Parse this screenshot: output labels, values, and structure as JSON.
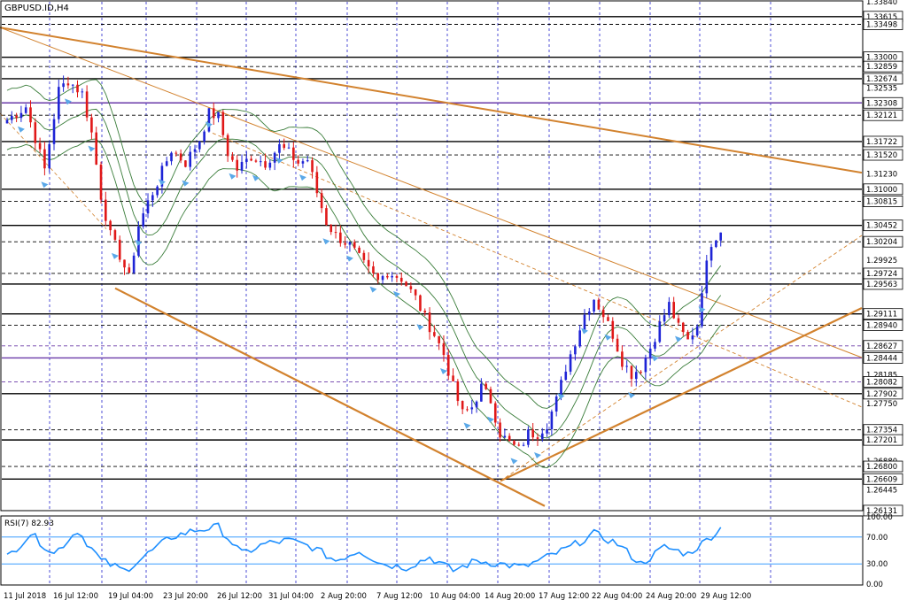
{
  "title": "GBPUSD.ID,H4",
  "colors": {
    "background": "#ffffff",
    "frame": "#000000",
    "grid": "#2222cc",
    "bull_candle": "#1e24d6",
    "bear_candle": "#e01818",
    "trendline": "#d2822e",
    "bollinger": "#3a7d3a",
    "level_line": "#000000",
    "level_line_purple": "#6a3aa8",
    "rsi_line": "#1e8fff",
    "fractal_arrow": "#5aa8e8"
  },
  "chart_data": {
    "type": "candlestick",
    "symbol": "GBPUSD.ID",
    "timeframe": "H4",
    "ylim": [
      1.2613,
      1.3384
    ],
    "price_ticks": [
      "1.33840",
      "1.33615",
      "1.33498",
      "1.33000",
      "1.32859",
      "1.32674",
      "1.32535",
      "1.32308",
      "1.32121",
      "1.31722",
      "1.31520",
      "1.31230",
      "1.31000",
      "1.30815",
      "1.30452",
      "1.30204",
      "1.29925",
      "1.29724",
      "1.29563",
      "1.29111",
      "1.28940",
      "1.28627",
      "1.28444",
      "1.28185",
      "1.28082",
      "1.27902",
      "1.27750",
      "1.27354",
      "1.27201",
      "1.26880",
      "1.26800",
      "1.26609",
      "1.26445",
      "1.26131"
    ],
    "horizontal_levels": [
      {
        "price": 1.33615,
        "style": "solid"
      },
      {
        "price": 1.33498,
        "style": "dashed"
      },
      {
        "price": 1.33,
        "style": "solid"
      },
      {
        "price": 1.32859,
        "style": "dashed"
      },
      {
        "price": 1.32674,
        "style": "solid"
      },
      {
        "price": 1.32308,
        "style": "solid",
        "color": "purple"
      },
      {
        "price": 1.32121,
        "style": "dashed"
      },
      {
        "price": 1.31722,
        "style": "solid"
      },
      {
        "price": 1.3152,
        "style": "dashed"
      },
      {
        "price": 1.31,
        "style": "solid"
      },
      {
        "price": 1.30815,
        "style": "dashed"
      },
      {
        "price": 1.30452,
        "style": "solid"
      },
      {
        "price": 1.30204,
        "style": "dashed"
      },
      {
        "price": 1.29724,
        "style": "dashed"
      },
      {
        "price": 1.29563,
        "style": "solid"
      },
      {
        "price": 1.29111,
        "style": "solid"
      },
      {
        "price": 1.2894,
        "style": "dashed"
      },
      {
        "price": 1.28627,
        "style": "dashed",
        "color": "purple"
      },
      {
        "price": 1.28444,
        "style": "solid",
        "color": "purple"
      },
      {
        "price": 1.28082,
        "style": "dashed",
        "color": "purple"
      },
      {
        "price": 1.27902,
        "style": "solid"
      },
      {
        "price": 1.27354,
        "style": "dashed"
      },
      {
        "price": 1.27201,
        "style": "solid"
      },
      {
        "price": 1.268,
        "style": "dashed"
      },
      {
        "price": 1.26609,
        "style": "solid"
      },
      {
        "price": 1.26131,
        "style": "dashed"
      }
    ],
    "boxed_price_labels": [
      "1.33615",
      "1.33498",
      "1.33000",
      "1.32859",
      "1.32674",
      "1.32308",
      "1.32121",
      "1.31722",
      "1.31520",
      "1.31000",
      "1.30815",
      "1.30452",
      "1.30204",
      "1.29724",
      "1.29563",
      "1.29111",
      "1.28940",
      "1.28627",
      "1.28444",
      "1.28082",
      "1.27902",
      "1.27354",
      "1.27201",
      "1.26800",
      "1.26609",
      "1.26131"
    ],
    "last_price": 1.30452,
    "time_labels": [
      "11 Jul 2018",
      "16 Jul 12:00",
      "19 Jul 04:00",
      "23 Jul 20:00",
      "26 Jul 12:00",
      "31 Jul 04:00",
      "2 Aug 20:00",
      "7 Aug 12:00",
      "10 Aug 04:00",
      "14 Aug 20:00",
      "17 Aug 12:00",
      "22 Aug 04:00",
      "24 Aug 20:00",
      "29 Aug 12:00"
    ],
    "candle_anchors": [
      [
        0,
        1.3205
      ],
      [
        4,
        1.3225
      ],
      [
        8,
        1.313
      ],
      [
        11,
        1.325
      ],
      [
        13,
        1.3265
      ],
      [
        16,
        1.3245
      ],
      [
        18,
        1.3185
      ],
      [
        20,
        1.309
      ],
      [
        22,
        1.303
      ],
      [
        24,
        1.3
      ],
      [
        26,
        1.2965
      ],
      [
        28,
        1.3045
      ],
      [
        30,
        1.308
      ],
      [
        32,
        1.311
      ],
      [
        35,
        1.316
      ],
      [
        38,
        1.314
      ],
      [
        41,
        1.3175
      ],
      [
        43,
        1.3215
      ],
      [
        45,
        1.321
      ],
      [
        47,
        1.3155
      ],
      [
        49,
        1.313
      ],
      [
        52,
        1.315
      ],
      [
        55,
        1.314
      ],
      [
        58,
        1.3165
      ],
      [
        60,
        1.3155
      ],
      [
        62,
        1.314
      ],
      [
        64,
        1.3145
      ],
      [
        66,
        1.3095
      ],
      [
        68,
        1.305
      ],
      [
        70,
        1.303
      ],
      [
        73,
        1.3015
      ],
      [
        76,
        1.2985
      ],
      [
        79,
        1.296
      ],
      [
        81,
        1.2975
      ],
      [
        84,
        1.2965
      ],
      [
        87,
        1.2935
      ],
      [
        89,
        1.2905
      ],
      [
        91,
        1.288
      ],
      [
        93,
        1.285
      ],
      [
        95,
        1.28
      ],
      [
        97,
        1.276
      ],
      [
        99,
        1.277
      ],
      [
        101,
        1.28
      ],
      [
        103,
        1.278
      ],
      [
        105,
        1.273
      ],
      [
        107,
        1.2715
      ],
      [
        109,
        1.2705
      ],
      [
        111,
        1.273
      ],
      [
        113,
        1.273
      ],
      [
        115,
        1.2745
      ],
      [
        117,
        1.278
      ],
      [
        119,
        1.283
      ],
      [
        121,
        1.287
      ],
      [
        123,
        1.291
      ],
      [
        125,
        1.2935
      ],
      [
        127,
        1.291
      ],
      [
        129,
        1.288
      ],
      [
        131,
        1.284
      ],
      [
        133,
        1.282
      ],
      [
        135,
        1.283
      ],
      [
        137,
        1.286
      ],
      [
        139,
        1.2895
      ],
      [
        141,
        1.2925
      ],
      [
        143,
        1.289
      ],
      [
        145,
        1.287
      ],
      [
        147,
        1.2895
      ],
      [
        148,
        1.295
      ],
      [
        150,
        1.302
      ],
      [
        152,
        1.304
      ]
    ],
    "rsi": {
      "label": "RSI(7) 82.93",
      "period": 7,
      "value": 82.93,
      "ticks": [
        "100.00",
        "70.00",
        "30.00",
        "0.00"
      ],
      "levels": [
        70,
        30
      ],
      "anchors": [
        [
          0,
          40
        ],
        [
          5,
          75
        ],
        [
          10,
          45
        ],
        [
          15,
          80
        ],
        [
          20,
          35
        ],
        [
          25,
          20
        ],
        [
          30,
          45
        ],
        [
          35,
          70
        ],
        [
          40,
          80
        ],
        [
          45,
          85
        ],
        [
          50,
          45
        ],
        [
          55,
          60
        ],
        [
          60,
          65
        ],
        [
          65,
          55
        ],
        [
          70,
          35
        ],
        [
          75,
          50
        ],
        [
          80,
          30
        ],
        [
          85,
          25
        ],
        [
          90,
          40
        ],
        [
          95,
          20
        ],
        [
          100,
          35
        ],
        [
          105,
          30
        ],
        [
          110,
          25
        ],
        [
          115,
          40
        ],
        [
          120,
          55
        ],
        [
          125,
          75
        ],
        [
          130,
          60
        ],
        [
          135,
          30
        ],
        [
          140,
          55
        ],
        [
          145,
          45
        ],
        [
          148,
          60
        ],
        [
          152,
          83
        ]
      ]
    }
  }
}
